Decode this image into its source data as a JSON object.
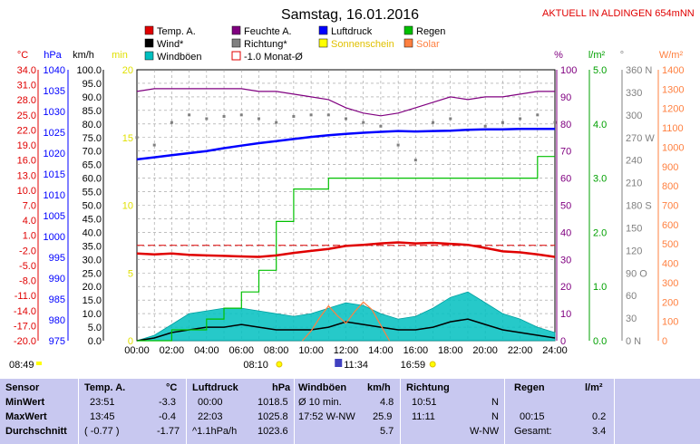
{
  "header": {
    "title": "Samstag, 16.01.2016",
    "aktuell": "AKTUELL IN ALDINGEN 654mNN"
  },
  "legend": [
    {
      "label": "Temp. A.",
      "color": "#e00000",
      "style": "box"
    },
    {
      "label": "Feuchte A.",
      "color": "#800080",
      "style": "box"
    },
    {
      "label": "Luftdruck",
      "color": "#0000ff",
      "style": "box"
    },
    {
      "label": "Regen",
      "color": "#00c000",
      "style": "box"
    },
    {
      "label": "Wind*",
      "color": "#000000",
      "style": "box"
    },
    {
      "label": "Richtung*",
      "color": "#808080",
      "style": "box"
    },
    {
      "label": "Sonnenschein",
      "color": "#ffff00",
      "style": "box"
    },
    {
      "label": "Solar",
      "color": "#ff8040",
      "style": "box"
    },
    {
      "label": "Windböen",
      "color": "#00c0c0",
      "style": "box"
    },
    {
      "label": "-1.0 Monat-Ø",
      "color": "#e00000",
      "style": "hollow"
    }
  ],
  "axes": {
    "temp": {
      "unit": "°C",
      "color": "#e00000",
      "ticks": [
        "34.0",
        "31.0",
        "28.0",
        "25.0",
        "22.0",
        "19.0",
        "16.0",
        "13.0",
        "10.0",
        "7.0",
        "4.0",
        "1.0",
        "-2.0",
        "-5.0",
        "-8.0",
        "-11.0",
        "-14.0",
        "-17.0",
        "-20.0"
      ]
    },
    "hpa": {
      "unit": "hPa",
      "color": "#0000ff",
      "ticks": [
        "1040",
        "1035",
        "1030",
        "1025",
        "1020",
        "1015",
        "1010",
        "1005",
        "1000",
        "995",
        "990",
        "985",
        "980",
        "975"
      ]
    },
    "kmh": {
      "unit": "km/h",
      "color": "#000000",
      "ticks": [
        "100.0",
        "95.0",
        "90.0",
        "85.0",
        "80.0",
        "75.0",
        "70.0",
        "65.0",
        "60.0",
        "55.0",
        "50.0",
        "45.0",
        "40.0",
        "35.0",
        "30.0",
        "25.0",
        "20.0",
        "15.0",
        "10.0",
        "5.0",
        "0.0"
      ]
    },
    "min": {
      "unit": "min",
      "color": "#e0e000",
      "ticks": [
        "20",
        "15",
        "10",
        "5",
        "0"
      ]
    },
    "hum": {
      "unit": "%",
      "color": "#800080",
      "ticks": [
        "100",
        "90",
        "80",
        "70",
        "60",
        "50",
        "40",
        "30",
        "20",
        "10",
        "0"
      ]
    },
    "rain": {
      "unit": "l/m²",
      "color": "#00a000",
      "ticks": [
        "5.0",
        "4.0",
        "3.0",
        "2.0",
        "1.0",
        "0.0"
      ]
    },
    "dir": {
      "unit": "°",
      "color": "#808080",
      "ticks": [
        "360 N",
        "330",
        "300",
        "270 W",
        "240",
        "210",
        "180 S",
        "150",
        "120",
        "90 O",
        "60",
        "30",
        "0 N"
      ]
    },
    "solar": {
      "unit": "W/m²",
      "color": "#ff8040",
      "ticks": [
        "1400",
        "1300",
        "1200",
        "1100",
        "1000",
        "900",
        "800",
        "700",
        "600",
        "500",
        "400",
        "300",
        "200",
        "100",
        "0"
      ]
    }
  },
  "chart_data": {
    "type": "line",
    "x_ticks": [
      "00:00",
      "02:00",
      "04:00",
      "06:00",
      "08:00",
      "10:00",
      "12:00",
      "14:00",
      "16:00",
      "18:00",
      "20:00",
      "22:00",
      "24:00"
    ],
    "grid": true,
    "series": [
      {
        "name": "Temp. A.",
        "axis": "temp",
        "color": "#e00000",
        "x": [
          0,
          1,
          2,
          3,
          4,
          5,
          6,
          7,
          8,
          9,
          10,
          11,
          12,
          13,
          14,
          15,
          16,
          17,
          18,
          19,
          20,
          21,
          22,
          23,
          24
        ],
        "y": [
          -2.6,
          -2.8,
          -2.6,
          -2.9,
          -3.0,
          -3.1,
          -3.2,
          -3.3,
          -3.0,
          -2.5,
          -2.1,
          -1.7,
          -1.1,
          -0.9,
          -0.6,
          -0.4,
          -0.6,
          -0.5,
          -0.7,
          -0.9,
          -1.5,
          -2.2,
          -2.4,
          -2.8,
          -3.3
        ]
      },
      {
        "name": "-1.0 Monat-Ø",
        "axis": "temp",
        "color": "#e00000",
        "x": [
          0,
          24
        ],
        "y": [
          -1.0,
          -1.0
        ]
      },
      {
        "name": "Feuchte A.",
        "axis": "hum",
        "color": "#800080",
        "x": [
          0,
          1,
          2,
          3,
          4,
          5,
          6,
          7,
          8,
          9,
          10,
          11,
          12,
          13,
          14,
          15,
          16,
          17,
          18,
          19,
          20,
          21,
          22,
          23,
          24
        ],
        "y": [
          92,
          93,
          93,
          93,
          93,
          93,
          93,
          92,
          92,
          91,
          90,
          89,
          86,
          84,
          83,
          84,
          86,
          88,
          90,
          89,
          90,
          90,
          91,
          92,
          92
        ]
      },
      {
        "name": "Luftdruck",
        "axis": "hpa",
        "color": "#0000ff",
        "x": [
          0,
          1,
          2,
          3,
          4,
          5,
          6,
          7,
          8,
          9,
          10,
          11,
          12,
          13,
          14,
          15,
          16,
          17,
          18,
          19,
          20,
          21,
          22,
          23,
          24
        ],
        "y": [
          1018.5,
          1019.0,
          1019.5,
          1020.0,
          1020.5,
          1021.2,
          1021.8,
          1022.4,
          1022.9,
          1023.4,
          1023.9,
          1024.3,
          1024.6,
          1024.9,
          1025.1,
          1025.3,
          1025.2,
          1025.3,
          1025.4,
          1025.6,
          1025.7,
          1025.7,
          1025.8,
          1025.8,
          1025.8
        ]
      },
      {
        "name": "Regen",
        "axis": "rain",
        "color": "#00c000",
        "x": [
          0,
          1,
          2,
          3,
          4,
          5,
          6,
          7,
          8,
          9,
          10,
          11,
          12,
          13,
          14,
          15,
          16,
          17,
          18,
          19,
          20,
          21,
          22,
          23,
          24
        ],
        "y": [
          0.0,
          0.0,
          0.2,
          0.2,
          0.4,
          0.6,
          0.9,
          1.3,
          2.2,
          2.8,
          2.8,
          3.0,
          3.0,
          3.0,
          3.0,
          3.0,
          3.0,
          3.0,
          3.0,
          3.0,
          3.0,
          3.0,
          3.0,
          3.4,
          3.4
        ]
      },
      {
        "name": "Wind*",
        "axis": "kmh",
        "color": "#000000",
        "x": [
          0,
          1,
          2,
          3,
          4,
          5,
          6,
          7,
          8,
          9,
          10,
          11,
          12,
          13,
          14,
          15,
          16,
          17,
          18,
          19,
          20,
          21,
          22,
          23,
          24
        ],
        "y": [
          0,
          1,
          3,
          4,
          5,
          5,
          6,
          5,
          4,
          4,
          4,
          5,
          7,
          6,
          5,
          4,
          4,
          5,
          7,
          8,
          6,
          4,
          3,
          2,
          1
        ]
      },
      {
        "name": "Windböen",
        "axis": "kmh",
        "color": "#00c0c0",
        "x": [
          0,
          1,
          2,
          3,
          4,
          5,
          6,
          7,
          8,
          9,
          10,
          11,
          12,
          13,
          14,
          15,
          16,
          17,
          18,
          19,
          20,
          21,
          22,
          23,
          24
        ],
        "y": [
          0,
          2,
          6,
          10,
          11,
          12,
          12,
          11,
          10,
          9,
          10,
          12,
          14,
          13,
          10,
          8,
          9,
          12,
          16,
          18,
          14,
          10,
          8,
          5,
          3
        ]
      },
      {
        "name": "Solar",
        "axis": "solar",
        "color": "#ff8040",
        "x": [
          9.5,
          10,
          10.5,
          11,
          11.5,
          12,
          12.5,
          13,
          13.5,
          14,
          14.5
        ],
        "y": [
          0,
          50,
          120,
          180,
          130,
          90,
          150,
          200,
          160,
          80,
          0
        ]
      },
      {
        "name": "Richtung*",
        "axis": "dir",
        "color": "#808080",
        "x": [
          0,
          1,
          2,
          3,
          4,
          5,
          6,
          7,
          8,
          9,
          10,
          11,
          12,
          13,
          14,
          15,
          16,
          17,
          18,
          19,
          20,
          21,
          22,
          23,
          24
        ],
        "y": [
          270,
          260,
          290,
          300,
          295,
          298,
          300,
          295,
          290,
          298,
          300,
          300,
          295,
          290,
          285,
          260,
          240,
          290,
          295,
          280,
          285,
          290,
          295,
          300,
          290
        ]
      }
    ]
  },
  "markers": {
    "sunrise": "08:10",
    "noon": "11:34",
    "sunset": "16:59",
    "moon": "08:49"
  },
  "table": {
    "sensor": {
      "head": "Sensor",
      "rows": [
        "MinWert",
        "MaxWert",
        "Durchschnitt"
      ]
    },
    "temp": {
      "head": "Temp. A.",
      "unit": "°C",
      "rows": [
        [
          "23:51",
          "-3.3"
        ],
        [
          "13:45",
          "-0.4"
        ],
        [
          "( -0.77 )",
          "-1.77"
        ]
      ]
    },
    "press": {
      "head": "Luftdruck",
      "unit": "hPa",
      "rows": [
        [
          "00:00",
          "1018.5"
        ],
        [
          "22:03",
          "1025.8"
        ],
        [
          "^1.1hPa/h",
          "1023.6"
        ]
      ]
    },
    "gust": {
      "head": "Windböen",
      "unit": "km/h",
      "rows": [
        [
          "Ø 10 min.",
          "4.8"
        ],
        [
          "17:52  W-NW",
          "25.9"
        ],
        [
          "",
          "5.7"
        ]
      ]
    },
    "dir": {
      "head": "Richtung",
      "rows": [
        [
          "10:51",
          "N"
        ],
        [
          "11:11",
          "N"
        ],
        [
          "",
          "W-NW"
        ]
      ]
    },
    "rain": {
      "head": "Regen",
      "unit": "l/m²",
      "rows": [
        [
          "",
          ""
        ],
        [
          "00:15",
          "0.2"
        ],
        [
          "Gesamt:",
          "3.4"
        ]
      ]
    }
  }
}
